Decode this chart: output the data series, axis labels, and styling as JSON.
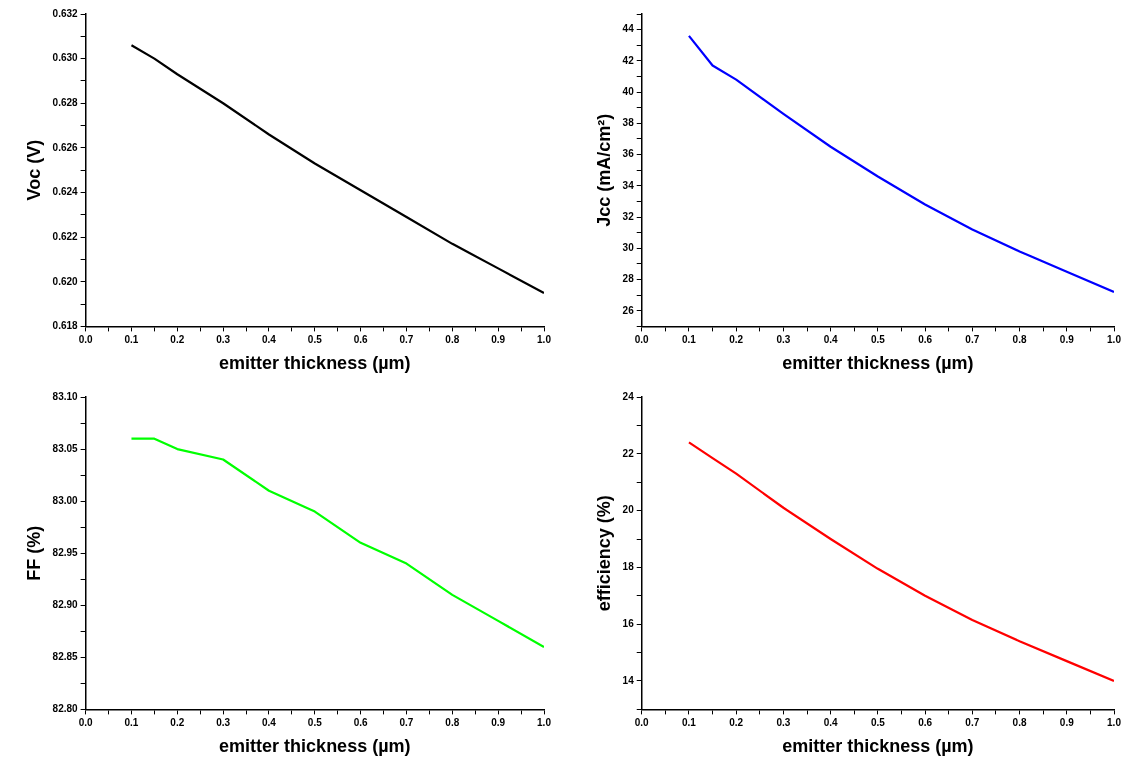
{
  "chart_data": [
    {
      "type": "line",
      "xlabel": "emitter thickness (µm)",
      "ylabel": "Voc (V)",
      "x": [
        0.1,
        0.15,
        0.2,
        0.3,
        0.4,
        0.5,
        0.6,
        0.7,
        0.8,
        0.9,
        1.0
      ],
      "series": [
        {
          "color": "#000000",
          "values": [
            0.6306,
            0.63,
            0.6293,
            0.628,
            0.6266,
            0.6253,
            0.6241,
            0.6229,
            0.6217,
            0.6206,
            0.6195
          ]
        }
      ],
      "xlim": [
        0,
        1
      ],
      "xticks": [
        {
          "value": 0,
          "label": "0.0"
        },
        {
          "value": 0.05,
          "label": null
        },
        {
          "value": 0.1,
          "label": "0.1"
        },
        {
          "value": 0.15,
          "label": null
        },
        {
          "value": 0.2,
          "label": "0.2"
        },
        {
          "value": 0.25,
          "label": null
        },
        {
          "value": 0.3,
          "label": "0.3"
        },
        {
          "value": 0.35,
          "label": null
        },
        {
          "value": 0.4,
          "label": "0.4"
        },
        {
          "value": 0.45,
          "label": null
        },
        {
          "value": 0.5,
          "label": "0.5"
        },
        {
          "value": 0.55,
          "label": null
        },
        {
          "value": 0.6,
          "label": "0.6"
        },
        {
          "value": 0.65,
          "label": null
        },
        {
          "value": 0.7,
          "label": "0.7"
        },
        {
          "value": 0.75,
          "label": null
        },
        {
          "value": 0.8,
          "label": "0.8"
        },
        {
          "value": 0.85,
          "label": null
        },
        {
          "value": 0.9,
          "label": "0.9"
        },
        {
          "value": 0.95,
          "label": null
        },
        {
          "value": 1,
          "label": "1.0"
        }
      ],
      "ylim": [
        0.618,
        0.632
      ],
      "yticks": [
        0.618,
        {
          "value": 0.619,
          "label": null
        },
        {
          "value": 0.62,
          "label": "0.620"
        },
        {
          "value": 0.621,
          "label": null
        },
        0.622,
        {
          "value": 0.623,
          "label": null
        },
        0.624,
        {
          "value": 0.625,
          "label": null
        },
        0.626,
        {
          "value": 0.627,
          "label": null
        },
        0.628,
        {
          "value": 0.629,
          "label": null
        },
        {
          "value": 0.63,
          "label": "0.630"
        },
        {
          "value": 0.631,
          "label": null
        },
        0.632
      ],
      "grid": false,
      "legend": false,
      "marker": "none",
      "line_style": "solid"
    },
    {
      "type": "line",
      "xlabel": "emitter thickness (µm)",
      "ylabel": "Jcc (mA/cm²)",
      "x": [
        0.1,
        0.15,
        0.2,
        0.3,
        0.4,
        0.5,
        0.6,
        0.7,
        0.8,
        0.9,
        1.0
      ],
      "series": [
        {
          "color": "#0000ff",
          "values": [
            43.6,
            41.7,
            40.8,
            38.6,
            36.5,
            34.6,
            32.8,
            31.2,
            29.8,
            28.5,
            27.2
          ]
        }
      ],
      "xlim": [
        0,
        1
      ],
      "xticks": [
        {
          "value": 0,
          "label": "0.0"
        },
        {
          "value": 0.05,
          "label": null
        },
        {
          "value": 0.1,
          "label": "0.1"
        },
        {
          "value": 0.15,
          "label": null
        },
        {
          "value": 0.2,
          "label": "0.2"
        },
        {
          "value": 0.25,
          "label": null
        },
        {
          "value": 0.3,
          "label": "0.3"
        },
        {
          "value": 0.35,
          "label": null
        },
        {
          "value": 0.4,
          "label": "0.4"
        },
        {
          "value": 0.45,
          "label": null
        },
        {
          "value": 0.5,
          "label": "0.5"
        },
        {
          "value": 0.55,
          "label": null
        },
        {
          "value": 0.6,
          "label": "0.6"
        },
        {
          "value": 0.65,
          "label": null
        },
        {
          "value": 0.7,
          "label": "0.7"
        },
        {
          "value": 0.75,
          "label": null
        },
        {
          "value": 0.8,
          "label": "0.8"
        },
        {
          "value": 0.85,
          "label": null
        },
        {
          "value": 0.9,
          "label": "0.9"
        },
        {
          "value": 0.95,
          "label": null
        },
        {
          "value": 1,
          "label": "1.0"
        }
      ],
      "ylim": [
        25,
        45
      ],
      "yticks": [
        {
          "value": 25,
          "label": null
        },
        26,
        {
          "value": 27,
          "label": null
        },
        28,
        {
          "value": 29,
          "label": null
        },
        30,
        {
          "value": 31,
          "label": null
        },
        32,
        {
          "value": 33,
          "label": null
        },
        34,
        {
          "value": 35,
          "label": null
        },
        36,
        {
          "value": 37,
          "label": null
        },
        38,
        {
          "value": 39,
          "label": null
        },
        40,
        {
          "value": 41,
          "label": null
        },
        42,
        {
          "value": 43,
          "label": null
        },
        44,
        {
          "value": 45,
          "label": null
        }
      ],
      "grid": false,
      "legend": false,
      "marker": "none",
      "line_style": "solid"
    },
    {
      "type": "line",
      "xlabel": "emitter thickness (µm)",
      "ylabel": "FF (%)",
      "x": [
        0.1,
        0.15,
        0.2,
        0.3,
        0.4,
        0.5,
        0.6,
        0.7,
        0.8,
        0.9,
        1.0
      ],
      "series": [
        {
          "color": "#00ff00",
          "values": [
            83.06,
            83.06,
            83.05,
            83.04,
            83.01,
            82.99,
            82.96,
            82.94,
            82.91,
            82.885,
            82.86
          ]
        }
      ],
      "xlim": [
        0,
        1
      ],
      "xticks": [
        {
          "value": 0,
          "label": "0.0"
        },
        {
          "value": 0.05,
          "label": null
        },
        {
          "value": 0.1,
          "label": "0.1"
        },
        {
          "value": 0.15,
          "label": null
        },
        {
          "value": 0.2,
          "label": "0.2"
        },
        {
          "value": 0.25,
          "label": null
        },
        {
          "value": 0.3,
          "label": "0.3"
        },
        {
          "value": 0.35,
          "label": null
        },
        {
          "value": 0.4,
          "label": "0.4"
        },
        {
          "value": 0.45,
          "label": null
        },
        {
          "value": 0.5,
          "label": "0.5"
        },
        {
          "value": 0.55,
          "label": null
        },
        {
          "value": 0.6,
          "label": "0.6"
        },
        {
          "value": 0.65,
          "label": null
        },
        {
          "value": 0.7,
          "label": "0.7"
        },
        {
          "value": 0.75,
          "label": null
        },
        {
          "value": 0.8,
          "label": "0.8"
        },
        {
          "value": 0.85,
          "label": null
        },
        {
          "value": 0.9,
          "label": "0.9"
        },
        {
          "value": 0.95,
          "label": null
        },
        {
          "value": 1,
          "label": "1.0"
        }
      ],
      "ylim": [
        82.8,
        83.1
      ],
      "yticks": [
        {
          "value": 82.8,
          "label": "82.80"
        },
        {
          "value": 82.825,
          "label": null
        },
        {
          "value": 82.85,
          "label": "82.85"
        },
        {
          "value": 82.875,
          "label": null
        },
        {
          "value": 82.9,
          "label": "82.90"
        },
        {
          "value": 82.925,
          "label": null
        },
        {
          "value": 82.95,
          "label": "82.95"
        },
        {
          "value": 82.975,
          "label": null
        },
        {
          "value": 83,
          "label": "83.00"
        },
        {
          "value": 83.025,
          "label": null
        },
        {
          "value": 83.05,
          "label": "83.05"
        },
        {
          "value": 83.075,
          "label": null
        },
        {
          "value": 83.1,
          "label": "83.10"
        }
      ],
      "grid": false,
      "legend": false,
      "marker": "none",
      "line_style": "solid"
    },
    {
      "type": "line",
      "xlabel": "emitter thickness (µm)",
      "ylabel": "efficiency (%)",
      "x": [
        0.1,
        0.15,
        0.2,
        0.3,
        0.4,
        0.5,
        0.6,
        0.7,
        0.8,
        0.9,
        1.0
      ],
      "series": [
        {
          "color": "#ff0000",
          "values": [
            22.4,
            21.85,
            21.3,
            20.1,
            19.0,
            17.95,
            17.0,
            16.15,
            15.4,
            14.7,
            14.0
          ]
        }
      ],
      "xlim": [
        0,
        1
      ],
      "xticks": [
        {
          "value": 0,
          "label": "0.0"
        },
        {
          "value": 0.05,
          "label": null
        },
        {
          "value": 0.1,
          "label": "0.1"
        },
        {
          "value": 0.15,
          "label": null
        },
        {
          "value": 0.2,
          "label": "0.2"
        },
        {
          "value": 0.25,
          "label": null
        },
        {
          "value": 0.3,
          "label": "0.3"
        },
        {
          "value": 0.35,
          "label": null
        },
        {
          "value": 0.4,
          "label": "0.4"
        },
        {
          "value": 0.45,
          "label": null
        },
        {
          "value": 0.5,
          "label": "0.5"
        },
        {
          "value": 0.55,
          "label": null
        },
        {
          "value": 0.6,
          "label": "0.6"
        },
        {
          "value": 0.65,
          "label": null
        },
        {
          "value": 0.7,
          "label": "0.7"
        },
        {
          "value": 0.75,
          "label": null
        },
        {
          "value": 0.8,
          "label": "0.8"
        },
        {
          "value": 0.85,
          "label": null
        },
        {
          "value": 0.9,
          "label": "0.9"
        },
        {
          "value": 0.95,
          "label": null
        },
        {
          "value": 1,
          "label": "1.0"
        }
      ],
      "ylim": [
        13,
        24
      ],
      "yticks": [
        {
          "value": 13,
          "label": null
        },
        14,
        {
          "value": 15,
          "label": null
        },
        16,
        {
          "value": 17,
          "label": null
        },
        18,
        {
          "value": 19,
          "label": null
        },
        20,
        {
          "value": 21,
          "label": null
        },
        22,
        {
          "value": 23,
          "label": null
        },
        24
      ],
      "grid": false,
      "legend": false,
      "marker": "none",
      "line_style": "solid"
    }
  ]
}
